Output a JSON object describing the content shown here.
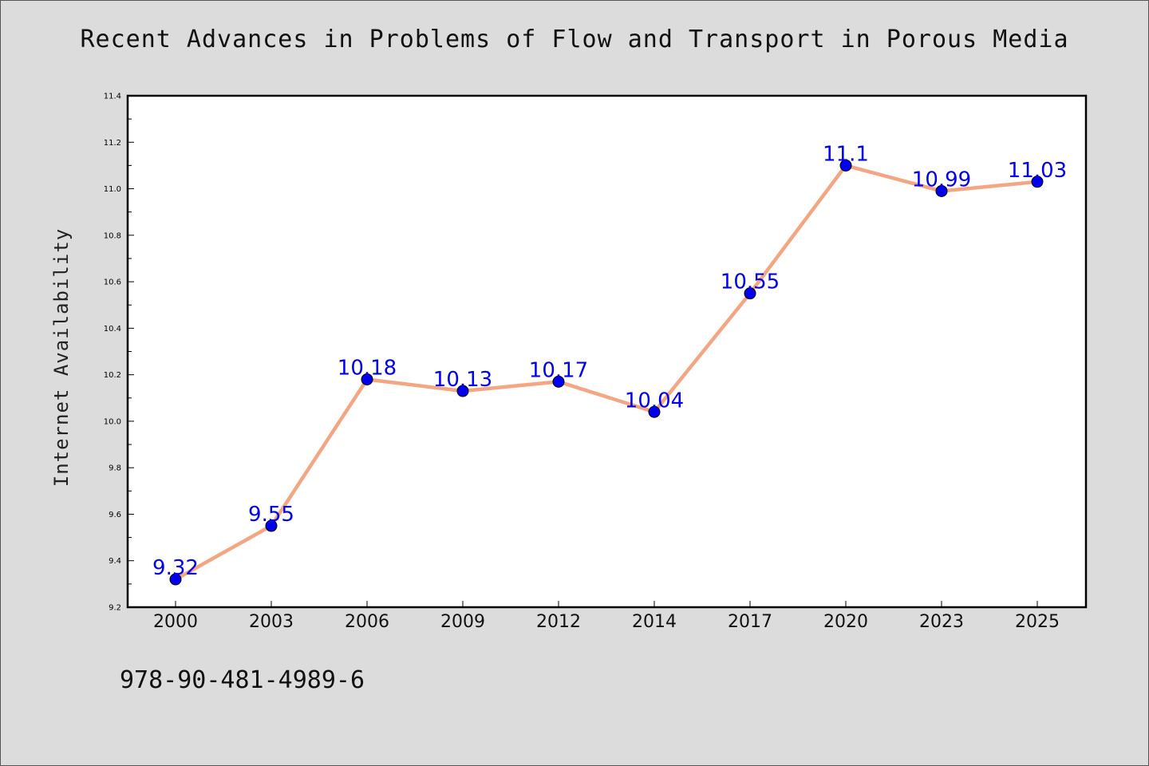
{
  "title": "Recent Advances in Problems of Flow and Transport in Porous Media",
  "footer": "978-90-481-4989-6",
  "colors": {
    "background": "#dcdcdc",
    "plot_area": "#ffffff",
    "line": "#f4a582",
    "marker": "#0000ee",
    "data_label": "#0000ee"
  },
  "chart_data": {
    "type": "line",
    "title": "Recent Advances in Problems of Flow and Transport in Porous Media",
    "xlabel": "",
    "ylabel": "Internet Availability",
    "categories": [
      "2000",
      "2003",
      "2006",
      "2009",
      "2012",
      "2014",
      "2017",
      "2020",
      "2023",
      "2025"
    ],
    "series": [
      {
        "values": [
          9.32,
          9.55,
          10.18,
          10.13,
          10.17,
          10.04,
          10.55,
          11.1,
          10.99,
          11.03
        ]
      }
    ],
    "data_labels": [
      "9.32",
      "9.55",
      "10.18",
      "10.13",
      "10.17",
      "10.04",
      "10.55",
      "11.1",
      "10.99",
      "11.03"
    ],
    "ylim": [
      9.2,
      11.4
    ],
    "y_ticks": [
      "9.2",
      "9.4",
      "9.6",
      "9.8",
      "10.0",
      "10.2",
      "10.4",
      "10.6",
      "10.8",
      "11.0",
      "11.2",
      "11.4"
    ],
    "grid": false,
    "legend": "none"
  }
}
